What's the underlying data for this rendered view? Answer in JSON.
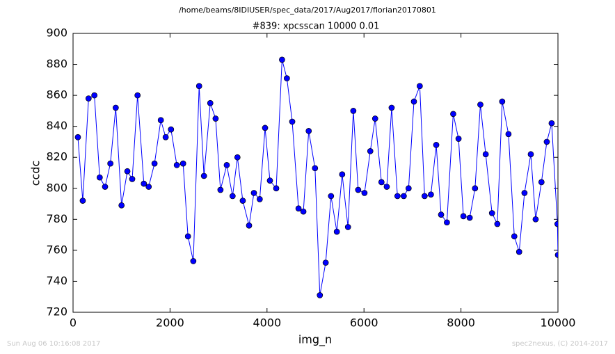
{
  "chart_data": {
    "type": "line",
    "suptitle": "/home/beams/8IDIUSER/spec_data/2017/Aug2017/florian20170801",
    "title": "#839: xpcsscan 10000 0.01",
    "xlabel": "img_n",
    "ylabel": "ccdc",
    "footer_left": "Sun Aug 06 10:16:08 2017",
    "footer_right": "spec2nexus, (C) 2014-2017",
    "xlim": [
      0,
      10000
    ],
    "xticks": [
      0,
      2000,
      4000,
      6000,
      8000,
      10000
    ],
    "ylim": [
      720,
      900
    ],
    "yticks": [
      720,
      740,
      760,
      780,
      800,
      820,
      840,
      860,
      880,
      900
    ],
    "series": [
      {
        "color": "#0000ff",
        "x": [
          100,
          200,
          320,
          440,
          550,
          660,
          770,
          880,
          1000,
          1120,
          1220,
          1330,
          1460,
          1560,
          1680,
          1810,
          1910,
          2020,
          2140,
          2270,
          2370,
          2480,
          2600,
          2700,
          2830,
          2940,
          3040,
          3170,
          3290,
          3390,
          3500,
          3630,
          3730,
          3850,
          3960,
          4060,
          4190,
          4310,
          4410,
          4520,
          4650,
          4750,
          4860,
          4990,
          5090,
          5210,
          5320,
          5440,
          5550,
          5670,
          5780,
          5880,
          6010,
          6130,
          6230,
          6360,
          6470,
          6570,
          6690,
          6820,
          6920,
          7030,
          7150,
          7250,
          7380,
          7490,
          7590,
          7710,
          7840,
          7950,
          8050,
          8180,
          8290,
          8400,
          8510,
          8640,
          8750,
          8850,
          8980,
          9100,
          9200,
          9310,
          9440,
          9540,
          9660,
          9770,
          9870,
          9990,
          10000
        ],
        "values": [
          833,
          792,
          858,
          860,
          807,
          801,
          816,
          852,
          789,
          811,
          806,
          860,
          803,
          801,
          816,
          844,
          833,
          838,
          815,
          816,
          769,
          753,
          866,
          808,
          855,
          845,
          799,
          815,
          795,
          820,
          792,
          776,
          797,
          793,
          839,
          805,
          800,
          883,
          871,
          843,
          787,
          785,
          837,
          813,
          731,
          752,
          795,
          772,
          809,
          775,
          850,
          799,
          797,
          824,
          845,
          804,
          801,
          852,
          795,
          795,
          800,
          856,
          866,
          795,
          796,
          828,
          783,
          778,
          848,
          832,
          782,
          781,
          800,
          854,
          822,
          784,
          777,
          856,
          835,
          769,
          759,
          797,
          822,
          780,
          804,
          830,
          842,
          777,
          757
        ]
      }
    ]
  }
}
